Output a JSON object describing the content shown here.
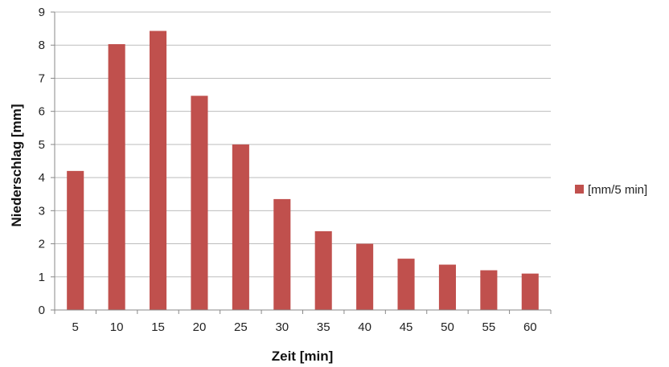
{
  "chart_data": {
    "type": "bar",
    "categories": [
      "5",
      "10",
      "15",
      "20",
      "25",
      "30",
      "35",
      "40",
      "45",
      "50",
      "55",
      "60"
    ],
    "series": [
      {
        "name": "[mm/5 min]",
        "values": [
          4.2,
          8.03,
          8.43,
          6.47,
          5.0,
          3.35,
          2.38,
          2.0,
          1.55,
          1.37,
          1.2,
          1.1
        ],
        "color": "#c0504d"
      }
    ],
    "title": "",
    "xlabel": "Zeit [min]",
    "ylabel": "Niederschlag [mm]",
    "ylim": [
      0,
      9
    ],
    "yticks": [
      "0",
      "1",
      "2",
      "3",
      "4",
      "5",
      "6",
      "7",
      "8",
      "9"
    ],
    "grid": true,
    "legend_position": "right"
  }
}
